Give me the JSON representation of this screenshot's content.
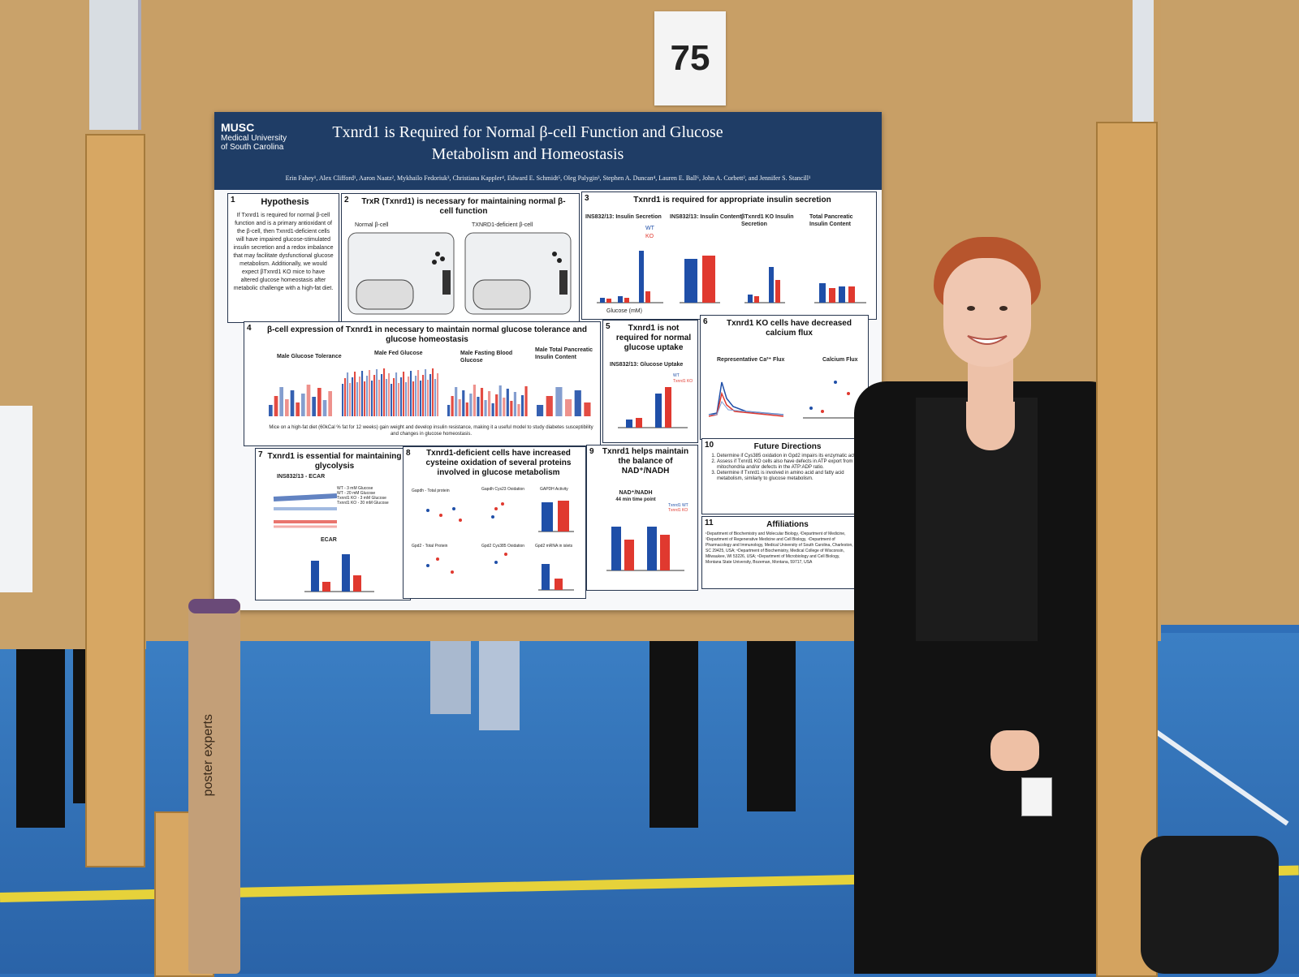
{
  "booth_number": "75",
  "poster": {
    "logo": {
      "name": "MUSC",
      "line1": "Medical University",
      "line2": "of South Carolina"
    },
    "title": "Txnrd1 is Required for Normal β-cell Function and Glucose Metabolism and Homeostasis",
    "authors": "Erin Fahey¹, Alex Clifford¹, Aaron Naatz², Mykhailo Fedoriuk³, Christiana Kappler⁴, Edward E. Schmidt⁵, Oleg Palygin³, Stephen A. Duncan⁴, Lauren E. Ball⁶, John A. Corbett², and Jennifer S. Stancill¹",
    "panels": [
      {
        "num": "1",
        "title": "Hypothesis",
        "text": "If Txnrd1 is required for normal β-cell function and is a primary antioxidant of the β-cell, then Txnrd1-deficient cells will have impaired glucose-stimulated insulin secretion and a redox imbalance that may facilitate dysfunctional glucose metabolism. Additionally, we would expect βTxnrd1 KO mice to have altered glucose homeostasis after metabolic challenge with a high-fat diet."
      },
      {
        "num": "2",
        "title": "TrxR (Txnrd1) is necessary for maintaining normal β-cell function",
        "sub_left": "Normal β-cell",
        "sub_right": "TXNRD1-deficient β-cell"
      },
      {
        "num": "3",
        "title": "Txnrd1 is required for appropriate insulin secretion",
        "charts": [
          "INS832/13: Insulin Secretion",
          "INS832/13: Insulin Content",
          "βTxnrd1 KO Insulin Secretion",
          "Total Pancreatic Insulin Content"
        ],
        "legend": [
          "WT",
          "KO"
        ],
        "xlabel": "Glucose (mM)"
      },
      {
        "num": "4",
        "title": "β-cell expression of Txnrd1 in necessary to maintain normal glucose tolerance and glucose homeostasis",
        "charts": [
          "Male Glucose Tolerance",
          "Male Fed Glucose",
          "Male Fasting Blood Glucose",
          "Male Total Pancreatic Insulin Content"
        ],
        "note": "Mice on a high-fat diet (60kCal % fat for 12 weeks) gain weight and develop insulin resistance, making it a useful model to study diabetes susceptibility and changes in glucose homeostasis."
      },
      {
        "num": "5",
        "title": "Txnrd1 is not required for normal glucose uptake",
        "chart": "INS832/13: Glucose Uptake",
        "legend": [
          "WT",
          "Txnrd1 KO"
        ]
      },
      {
        "num": "6",
        "title": "Txnrd1 KO cells have decreased calcium flux",
        "charts": [
          "Representative Ca²⁺ Flux",
          "Calcium Flux"
        ]
      },
      {
        "num": "7",
        "title": "Txnrd1 is essential for maintaining glycolysis",
        "chart": "INS832/13 - ECAR",
        "chart2": "ECAR",
        "legend": [
          "WT - 3 mM Glucose",
          "WT - 20 mM Glucose",
          "Txnrd1 KO - 3 mM Glucose",
          "Txnrd1 KO - 20 mM Glucose"
        ]
      },
      {
        "num": "8",
        "title": "Txnrd1-deficient cells have increased cysteine oxidation of several proteins involved in glucose metabolism",
        "charts": [
          "Gapdh - Total protein",
          "Gapdh Cys23 Oxidation",
          "GAPDH Activity",
          "Gpd2 - Total Protein",
          "Gpd2 Cys385 Oxidation",
          "Gpd2 mRNA in islets"
        ]
      },
      {
        "num": "9",
        "title": "Txnrd1 helps maintain the balance of NAD⁺/NADH",
        "chart": "NAD⁺/NADH",
        "chart_sub": "44 min time point",
        "legend": [
          "Txnrd1 WT",
          "Txnrd1 KO"
        ]
      },
      {
        "num": "10",
        "title": "Future Directions",
        "items": [
          "Determine if Cys385 oxidation in Gpd2 impairs its enzymatic activity.",
          "Assess if Txnrd1 KO cells also have defects in ATP export from the mitochondria and/or defects in the ATP:ADP ratio.",
          "Determine if Txnrd1 is involved in amino acid and fatty acid metabolism, similarly to glucose metabolism."
        ]
      },
      {
        "num": "11",
        "title": "Affiliations",
        "text": "¹Department of Biochemistry and Molecular Biology, ²Department of Medicine, ³Department of Regenerative Medicine and Cell Biology, ⁴Department of Pharmacology and Immunology, Medical University of South Carolina, Charleston, SC 29425, USA; ⁵Department of Biochemistry, Medical College of Wisconsin, Milwaukee, WI 53226, USA; ⁶Department of Microbiology and Cell Biology, Montana State University, Bozeman, Montana, 59717, USA"
      }
    ]
  },
  "tube_text": "poster experts",
  "colors": {
    "wt": "#1f4fa8",
    "ko": "#e0392f",
    "poster_header": "#1f3d66",
    "board": "#c89f66",
    "floor": "#2f6fb8"
  }
}
